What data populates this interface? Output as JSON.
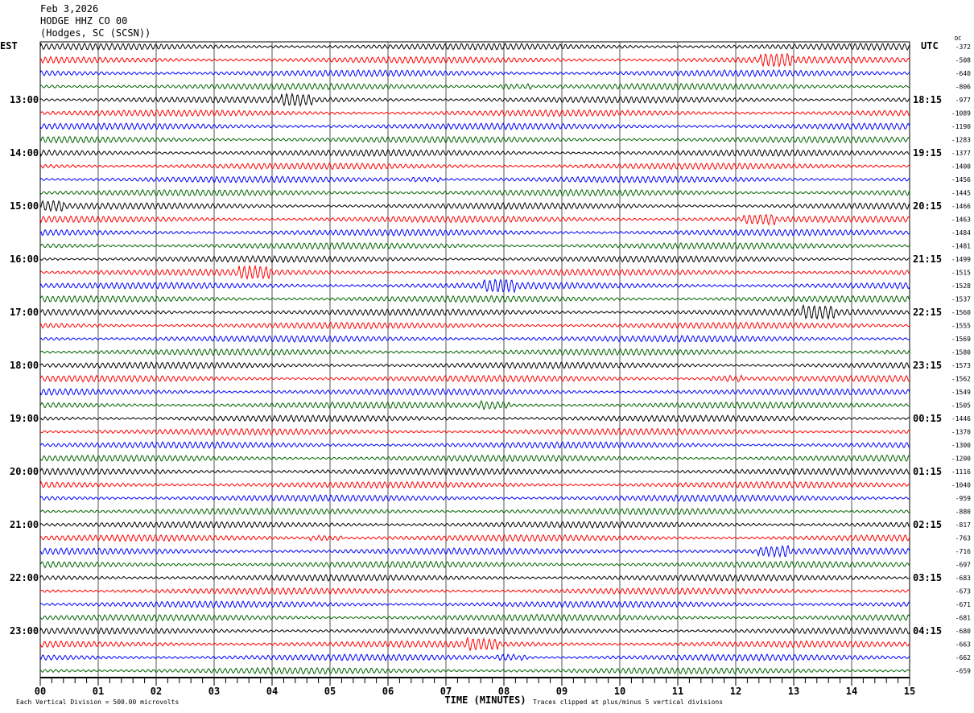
{
  "header": {
    "date": "Feb 3,2026",
    "station": "HODGE HHZ CO 00",
    "location": "(Hodges, SC (SCSN))"
  },
  "chart_data": {
    "type": "line",
    "title": "HODGE HHZ CO 00",
    "xlabel": "TIME (MINUTES)",
    "xlim": [
      0,
      15
    ],
    "x_ticks": [
      "00",
      "01",
      "02",
      "03",
      "04",
      "05",
      "06",
      "07",
      "08",
      "09",
      "10",
      "11",
      "12",
      "13",
      "14",
      "15"
    ],
    "left_axis_label": "EST",
    "right_axis_label": "UTC",
    "dc_label": "DC",
    "left_hour_labels": [
      "13:00",
      "14:00",
      "15:00",
      "16:00",
      "17:00",
      "18:00",
      "19:00",
      "20:00",
      "21:00",
      "22:00",
      "23:00"
    ],
    "right_hour_labels": [
      "18:15",
      "19:15",
      "20:15",
      "21:15",
      "22:15",
      "23:15",
      "00:15",
      "01:15",
      "02:15",
      "03:15",
      "04:15"
    ],
    "trace_minutes": 15,
    "trace_colors": [
      "#000000",
      "#ff0000",
      "#0000ff",
      "#006400"
    ],
    "dc_offsets": [
      -372,
      -508,
      -640,
      -806,
      -977,
      -1089,
      -1190,
      -1283,
      -1377,
      -1400,
      -1456,
      -1445,
      -1466,
      -1463,
      -1484,
      -1481,
      -1499,
      -1515,
      -1528,
      -1537,
      -1560,
      -1555,
      -1569,
      -1580,
      -1573,
      -1562,
      -1549,
      -1505,
      -1446,
      -1370,
      -1300,
      -1200,
      -1116,
      -1040,
      -959,
      -880,
      -817,
      -763,
      -716,
      -697,
      -683,
      -673,
      -671,
      -681,
      -680,
      -663,
      -662,
      -659
    ],
    "footer_left": "Each Vertical Division =  500.00 microvolts",
    "footer_right": "Traces clipped at plus/minus 5 vertical divisions"
  }
}
